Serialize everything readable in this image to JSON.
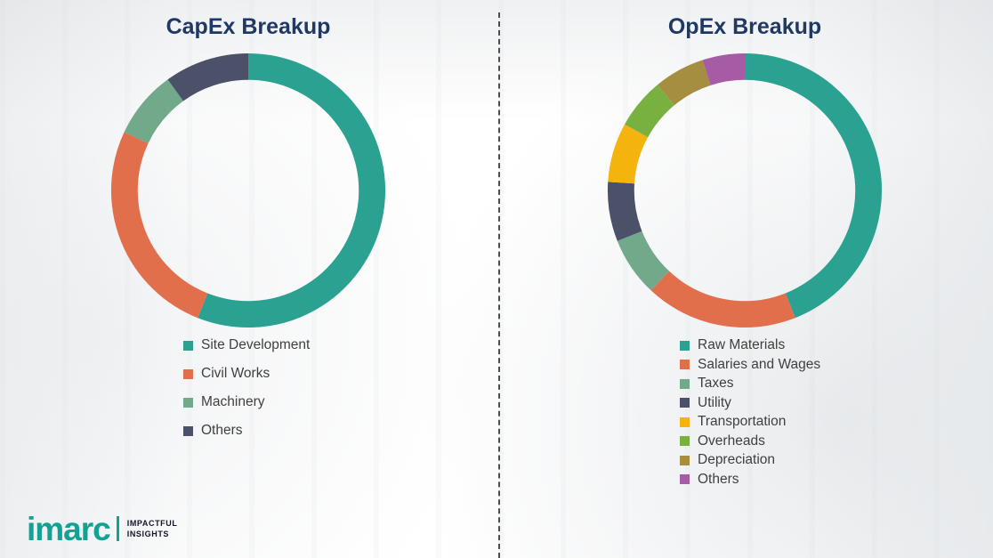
{
  "chart_data": [
    {
      "type": "pie",
      "subtype": "donut",
      "title": "CapEx Breakup",
      "labels": [
        "Site Development",
        "Civil Works",
        "Machinery",
        "Others"
      ],
      "values": [
        56,
        26,
        8,
        10
      ],
      "colors": [
        "#2aa191",
        "#e26f4c",
        "#72a98b",
        "#4a5168"
      ],
      "legend_position": "bottom",
      "start_angle_deg": 0,
      "direction": "clockwise"
    },
    {
      "type": "pie",
      "subtype": "donut",
      "title": "OpEx Breakup",
      "labels": [
        "Raw Materials",
        "Salaries and Wages",
        "Taxes",
        "Utility",
        "Transportation",
        "Overheads",
        "Depreciation",
        "Others"
      ],
      "values": [
        44,
        18,
        7,
        7,
        7,
        6,
        6,
        5
      ],
      "colors": [
        "#2aa191",
        "#e26f4c",
        "#72a98b",
        "#4a5168",
        "#f4b30d",
        "#78b13f",
        "#a58e3f",
        "#a55ca5"
      ],
      "legend_position": "bottom",
      "start_angle_deg": 0,
      "direction": "clockwise"
    }
  ],
  "titles": {
    "title_color": "#1f3864"
  },
  "divider": {
    "style": "dashed-vertical",
    "color": "#4d4d4d"
  },
  "logo": {
    "brand": "imarc",
    "brand_color": "#12a193",
    "tagline_line1": "IMPACTFUL",
    "tagline_line2": "INSIGHTS"
  }
}
